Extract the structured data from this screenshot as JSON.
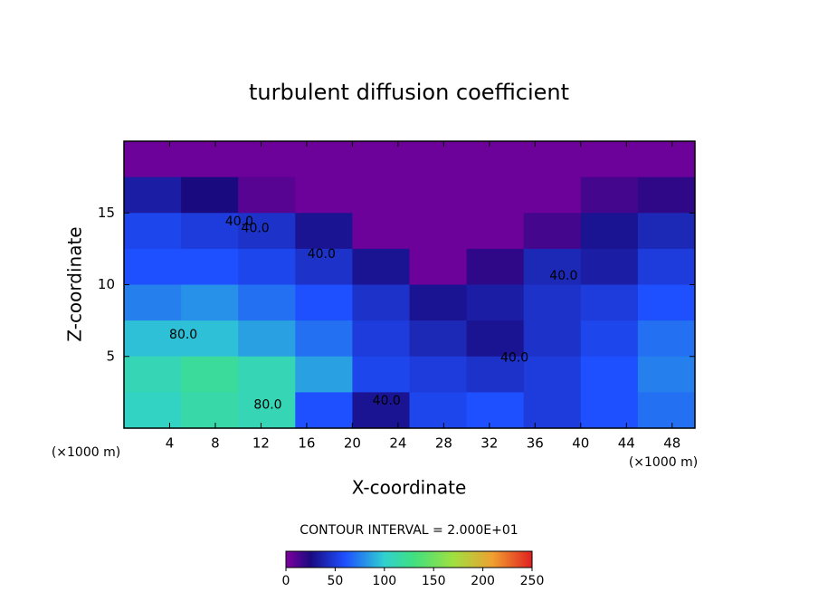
{
  "chart_data": {
    "type": "contour",
    "title": "turbulent diffusion coefficient",
    "x_label": "X-coordinate",
    "y_label": "Z-coordinate",
    "x_unit_label": "(×1000 m)",
    "xlim": [
      0,
      50
    ],
    "xticks": [
      4,
      8,
      12,
      16,
      20,
      24,
      28,
      32,
      36,
      40,
      44,
      48
    ],
    "ylim": [
      0,
      20
    ],
    "yticks": [
      5,
      10,
      15
    ],
    "x": [
      2.5,
      7.5,
      12.5,
      17.5,
      22.5,
      27.5,
      32.5,
      37.5,
      42.5,
      47.5
    ],
    "y": [
      18.75,
      16.25,
      13.75,
      11.25,
      8.75,
      6.25,
      3.75,
      1.25
    ],
    "values": [
      [
        5,
        5,
        5,
        5,
        5,
        5,
        5,
        5,
        5,
        5
      ],
      [
        35,
        25,
        10,
        5,
        5,
        5,
        5,
        5,
        15,
        20
      ],
      [
        55,
        50,
        45,
        30,
        5,
        5,
        5,
        15,
        30,
        40
      ],
      [
        60,
        60,
        55,
        45,
        30,
        5,
        20,
        40,
        35,
        50
      ],
      [
        75,
        80,
        70,
        60,
        45,
        30,
        35,
        45,
        50,
        60
      ],
      [
        95,
        95,
        85,
        70,
        50,
        40,
        30,
        45,
        55,
        70
      ],
      [
        110,
        120,
        110,
        85,
        55,
        50,
        45,
        50,
        60,
        75
      ],
      [
        105,
        115,
        110,
        60,
        30,
        55,
        60,
        50,
        60,
        70
      ]
    ],
    "colormap": [
      {
        "value": 0,
        "color": "#80009f"
      },
      {
        "value": 25,
        "color": "#1a0a80"
      },
      {
        "value": 60,
        "color": "#1e50ff"
      },
      {
        "value": 100,
        "color": "#30d0d0"
      },
      {
        "value": 130,
        "color": "#40e080"
      },
      {
        "value": 170,
        "color": "#a0e040"
      },
      {
        "value": 210,
        "color": "#f0a030"
      },
      {
        "value": 250,
        "color": "#e02020"
      }
    ],
    "contour_labels": [
      {
        "value": 40,
        "label": "40.0",
        "x": 10.1,
        "z": 14.4
      },
      {
        "value": 40,
        "label": "40.0",
        "x": 11.5,
        "z": 13.9
      },
      {
        "value": 40,
        "label": "40.0",
        "x": 17.3,
        "z": 12.1
      },
      {
        "value": 80,
        "label": "80.0",
        "x": 5.2,
        "z": 6.5
      },
      {
        "value": 80,
        "label": "80.0",
        "x": 12.6,
        "z": 1.6
      },
      {
        "value": 40,
        "label": "40.0",
        "x": 23.0,
        "z": 1.9
      },
      {
        "value": 40,
        "label": "40.0",
        "x": 38.5,
        "z": 10.6
      },
      {
        "value": 40,
        "label": "40.0",
        "x": 34.2,
        "z": 4.9
      }
    ],
    "colorbar": {
      "title": "CONTOUR INTERVAL = 2.000E+01",
      "lim": [
        0,
        250
      ],
      "ticks": [
        0,
        50,
        100,
        150,
        200,
        250
      ]
    }
  }
}
